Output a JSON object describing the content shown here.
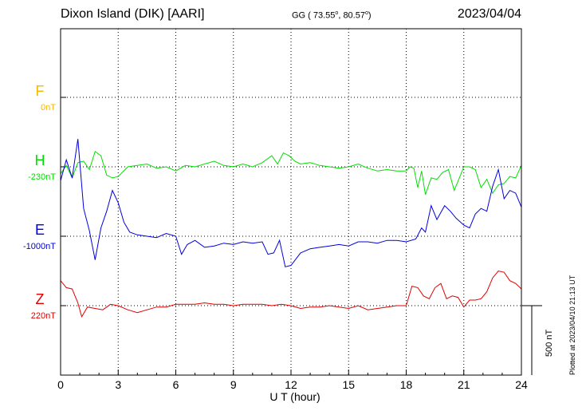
{
  "header": {
    "station": "Dixon Island (DIK)  [AARI]",
    "coords_prefix": "GG ( 73.55",
    "coords_mid": ",  80.57",
    "coords_suffix": ")",
    "degree_mark": "o",
    "date": "2023/04/04"
  },
  "footer": {
    "plotted": "Plotted at 2023/04/10 21:13 UT",
    "scale_label": "500 nT"
  },
  "chart_data": {
    "type": "line",
    "title": "Dixon Island (DIK)  [AARI]",
    "xlabel": "U T (hour)",
    "xlim": [
      0,
      24
    ],
    "x_ticks": [
      0,
      3,
      6,
      9,
      12,
      15,
      18,
      21,
      24
    ],
    "x_tick_labels": [
      "0",
      "3",
      "6",
      "9",
      "12",
      "15",
      "18",
      "21",
      "24"
    ],
    "grid": true,
    "scale_bar_nT": 500,
    "series": [
      {
        "name": "F",
        "baseline_label": "0nT",
        "color": "#f5b800",
        "baseline_nT": 0,
        "x": [],
        "y": []
      },
      {
        "name": "H",
        "baseline_label": "-230nT",
        "color": "#00e000",
        "baseline_nT": -230,
        "x": [
          0,
          0.3,
          0.6,
          0.9,
          1.2,
          1.5,
          1.8,
          2.1,
          2.4,
          2.7,
          3.0,
          3.5,
          4.0,
          4.5,
          5.0,
          5.5,
          6.0,
          6.5,
          7.0,
          7.5,
          8.0,
          8.5,
          9.0,
          9.5,
          10.0,
          10.5,
          11.0,
          11.3,
          11.6,
          11.9,
          12.2,
          12.5,
          13.0,
          13.5,
          14.0,
          14.5,
          15.0,
          15.5,
          16.0,
          16.5,
          17.0,
          17.5,
          18.0,
          18.2,
          18.4,
          18.6,
          18.8,
          19.0,
          19.3,
          19.6,
          19.9,
          20.2,
          20.5,
          20.8,
          21.0,
          21.3,
          21.6,
          21.9,
          22.2,
          22.5,
          22.8,
          23.1,
          23.4,
          23.7,
          24.0
        ],
        "y": [
          -50,
          10,
          -80,
          30,
          40,
          -20,
          110,
          80,
          -60,
          -80,
          -70,
          0,
          10,
          20,
          -10,
          0,
          -30,
          10,
          0,
          20,
          40,
          10,
          0,
          20,
          0,
          30,
          80,
          20,
          100,
          80,
          40,
          20,
          30,
          10,
          0,
          -10,
          0,
          20,
          -10,
          -30,
          -20,
          -30,
          -30,
          0,
          -10,
          -150,
          -30,
          -200,
          -80,
          -90,
          -40,
          -20,
          -170,
          -70,
          0,
          0,
          -20,
          -150,
          -90,
          -190,
          -130,
          -120,
          -70,
          -80,
          10
        ]
      },
      {
        "name": "E",
        "baseline_label": "-1000nT",
        "color": "#0000e0",
        "baseline_nT": -1000,
        "x": [
          0,
          0.3,
          0.6,
          0.9,
          1.2,
          1.5,
          1.8,
          2.1,
          2.4,
          2.7,
          3.0,
          3.3,
          3.6,
          4.0,
          4.5,
          5.0,
          5.5,
          6.0,
          6.3,
          6.6,
          7.0,
          7.5,
          8.0,
          8.5,
          9.0,
          9.5,
          10.0,
          10.5,
          10.8,
          11.1,
          11.4,
          11.7,
          12.0,
          12.5,
          13.0,
          13.5,
          14.0,
          14.5,
          15.0,
          15.5,
          16.0,
          16.5,
          17.0,
          17.5,
          18.0,
          18.5,
          18.8,
          19.0,
          19.3,
          19.6,
          20.0,
          20.3,
          20.6,
          21.0,
          21.3,
          21.6,
          21.9,
          22.2,
          22.5,
          22.8,
          23.1,
          23.4,
          23.7,
          24.0
        ],
        "y": [
          400,
          550,
          420,
          700,
          200,
          40,
          -170,
          60,
          180,
          330,
          240,
          100,
          30,
          10,
          0,
          -10,
          20,
          0,
          -130,
          -60,
          -30,
          -80,
          -70,
          -50,
          -60,
          -40,
          -50,
          -40,
          -130,
          -120,
          -30,
          -220,
          -210,
          -120,
          -90,
          -80,
          -70,
          -60,
          -70,
          -40,
          -40,
          -50,
          -30,
          -30,
          -40,
          -20,
          60,
          30,
          220,
          120,
          220,
          180,
          130,
          80,
          60,
          160,
          200,
          180,
          360,
          480,
          270,
          330,
          310,
          210
        ]
      },
      {
        "name": "Z",
        "baseline_label": "220nT",
        "color": "#e00000",
        "baseline_nT": 220,
        "x": [
          0,
          0.3,
          0.6,
          0.9,
          1.1,
          1.4,
          1.8,
          2.2,
          2.6,
          3.0,
          3.5,
          4.0,
          4.5,
          5.0,
          5.5,
          6.0,
          6.5,
          7.0,
          7.5,
          8.0,
          8.5,
          9.0,
          9.5,
          10.0,
          10.5,
          11.0,
          11.5,
          12.0,
          12.5,
          13.0,
          13.5,
          14.0,
          14.5,
          15.0,
          15.5,
          16.0,
          16.5,
          17.0,
          17.5,
          18.0,
          18.3,
          18.6,
          18.9,
          19.2,
          19.5,
          19.8,
          20.1,
          20.4,
          20.7,
          21.0,
          21.3,
          21.6,
          21.9,
          22.2,
          22.5,
          22.8,
          23.1,
          23.4,
          23.7,
          24.0
        ],
        "y": [
          180,
          130,
          120,
          20,
          -80,
          -10,
          -20,
          -30,
          10,
          0,
          -30,
          -50,
          -30,
          -10,
          -10,
          10,
          10,
          10,
          20,
          10,
          10,
          0,
          10,
          10,
          10,
          0,
          10,
          0,
          -20,
          -10,
          -10,
          0,
          -10,
          -20,
          0,
          -30,
          -20,
          -10,
          0,
          0,
          140,
          130,
          70,
          50,
          130,
          160,
          50,
          70,
          60,
          -10,
          40,
          40,
          50,
          100,
          200,
          250,
          240,
          180,
          160,
          120
        ]
      }
    ]
  }
}
